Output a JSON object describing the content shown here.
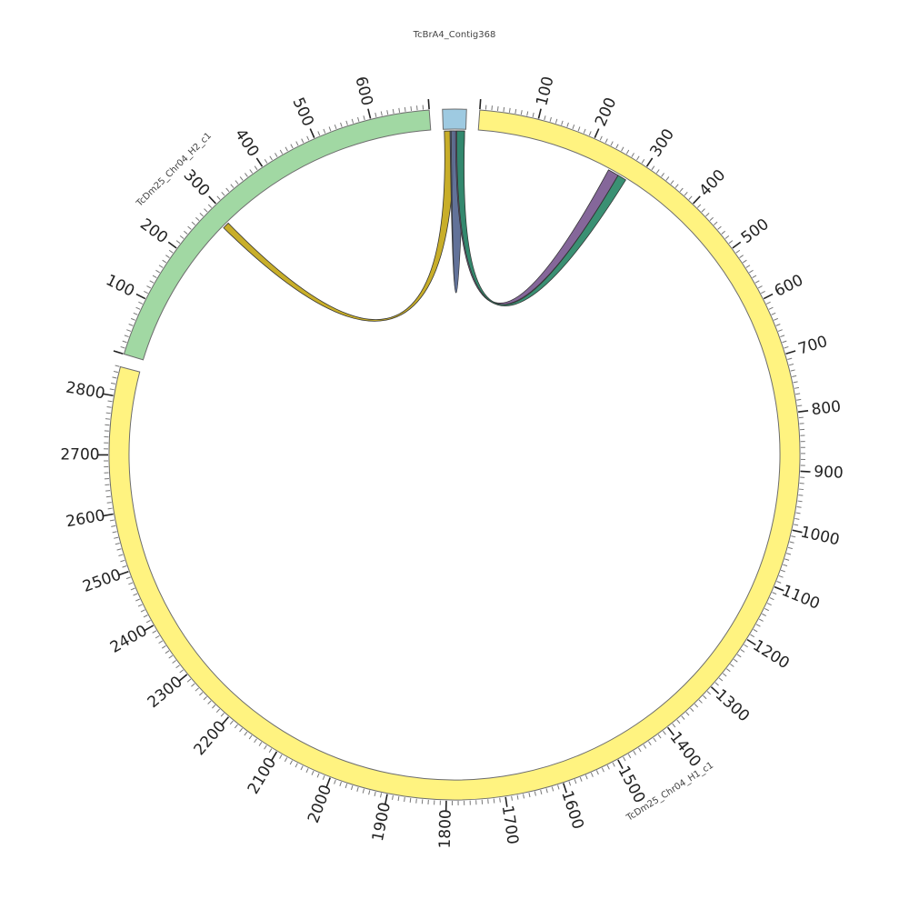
{
  "diagram": {
    "type": "circos",
    "sequences": [
      {
        "name": "TcBrA4_Contig368",
        "length": 10,
        "color": "#9ecae1",
        "label_ticks": false
      },
      {
        "name": "TcDm25_Chr04_H1_c1",
        "length": 2850,
        "color": "#fff380",
        "label_ticks": true
      },
      {
        "name": "TcDm25_Chr04_H2_c1",
        "length": 700,
        "color": "#a1d8a3",
        "label_ticks": true
      }
    ],
    "links": [
      {
        "color": "#c5aa1d",
        "from": {
          "seq": 0,
          "start": 0.5,
          "end": 5
        },
        "to": {
          "seq": 2,
          "start": 280,
          "end": 292
        }
      },
      {
        "color": "#5a6a93",
        "from": {
          "seq": 0,
          "start": 3.5,
          "end": 9.5
        },
        "to": {
          "seq": 0,
          "start": 3,
          "end": 9.5
        }
      },
      {
        "color": "#7e5f95",
        "from": {
          "seq": 0,
          "start": 5.5,
          "end": 9
        },
        "to": {
          "seq": 1,
          "start": 246,
          "end": 266
        }
      },
      {
        "color": "#2f8a6b",
        "from": {
          "seq": 0,
          "start": 6,
          "end": 9.5
        },
        "to": {
          "seq": 1,
          "start": 266,
          "end": 282
        }
      }
    ],
    "tick_major": 100,
    "tick_minor": 10
  }
}
